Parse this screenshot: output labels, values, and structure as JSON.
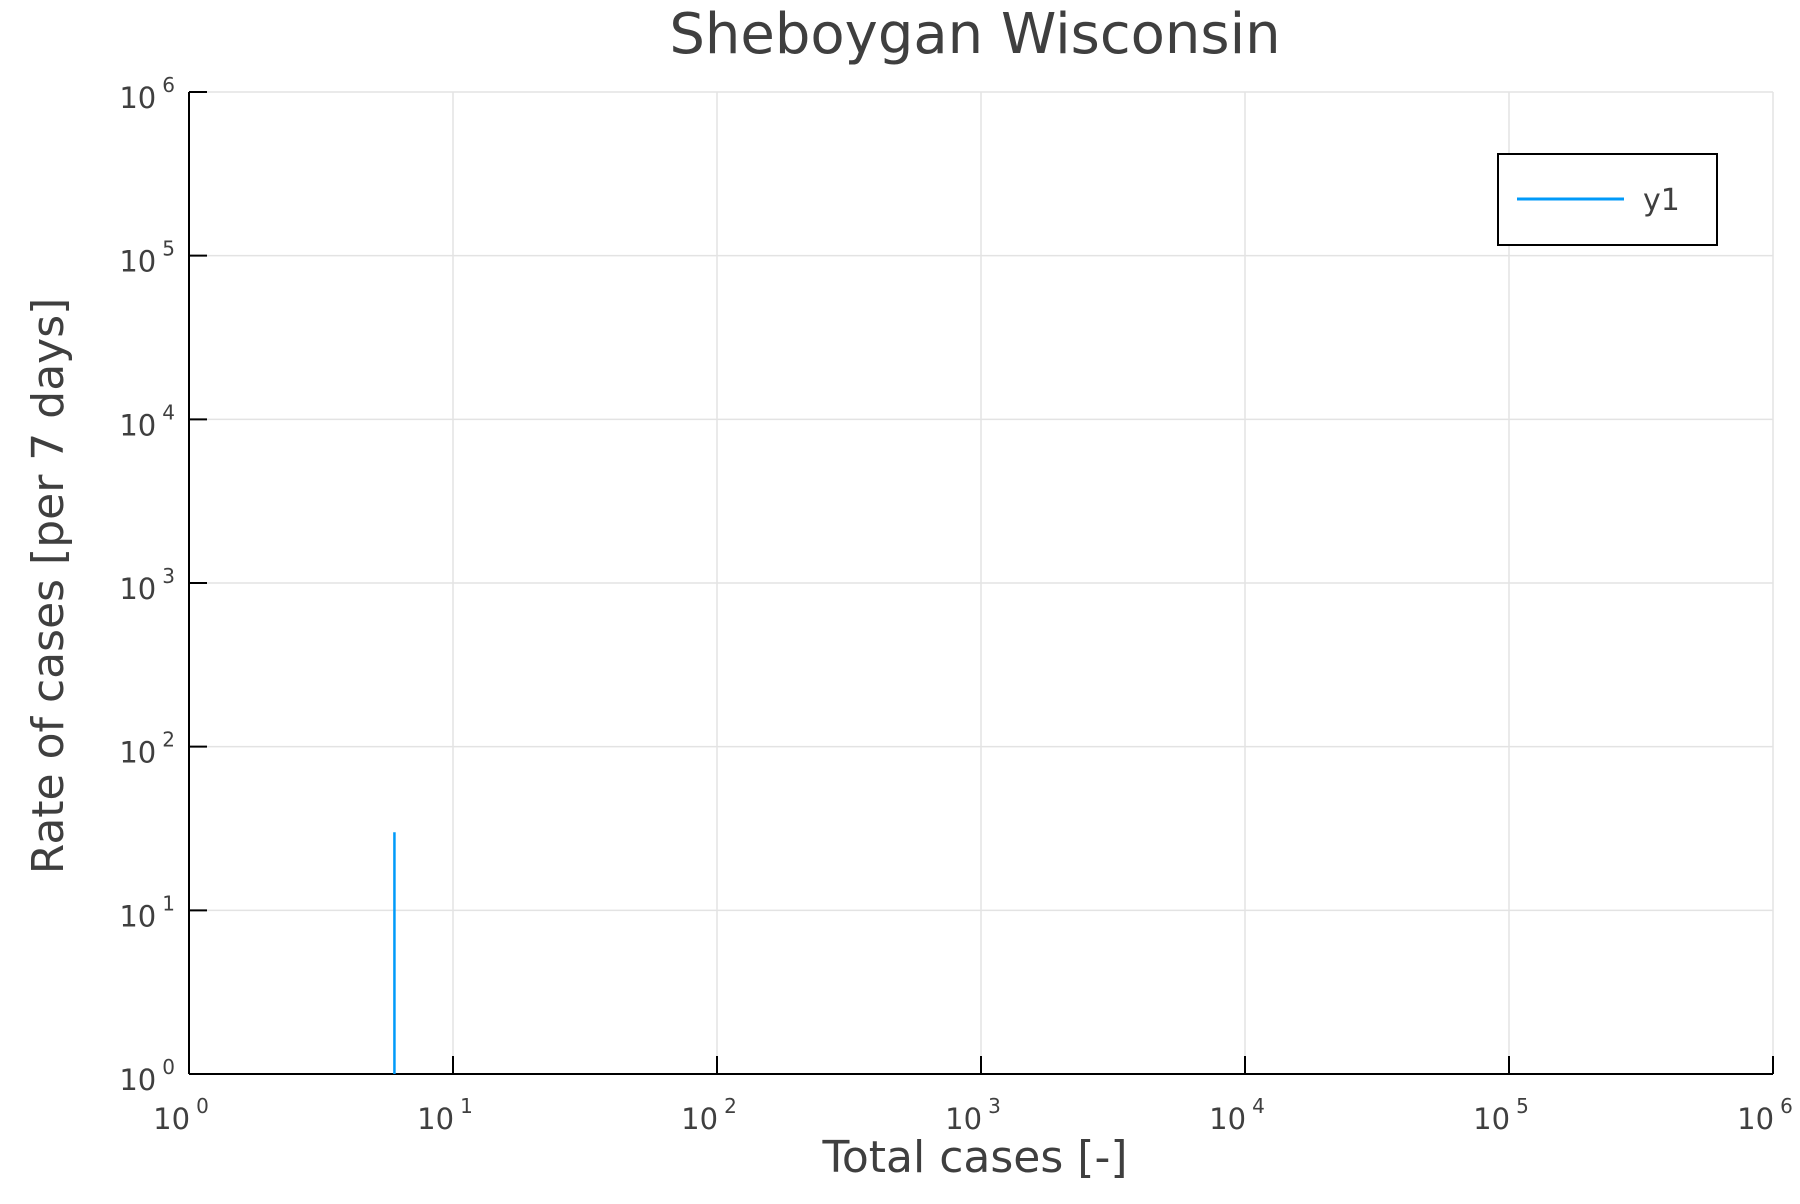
{
  "chart_data": {
    "type": "line",
    "title": "Sheboygan Wisconsin",
    "xlabel": "Total cases [-]",
    "ylabel": "Rate of cases [per 7 days]",
    "xscale": "log",
    "yscale": "log",
    "xlim": [
      1,
      1000000
    ],
    "ylim": [
      1,
      1000000
    ],
    "grid": true,
    "legend_position": "top-right",
    "x_ticks": [
      {
        "value": 1,
        "base": "10",
        "exp": "0"
      },
      {
        "value": 10,
        "base": "10",
        "exp": "1"
      },
      {
        "value": 100,
        "base": "10",
        "exp": "2"
      },
      {
        "value": 1000,
        "base": "10",
        "exp": "3"
      },
      {
        "value": 10000,
        "base": "10",
        "exp": "4"
      },
      {
        "value": 100000,
        "base": "10",
        "exp": "5"
      },
      {
        "value": 1000000,
        "base": "10",
        "exp": "6"
      }
    ],
    "y_ticks": [
      {
        "value": 1,
        "base": "10",
        "exp": "0"
      },
      {
        "value": 10,
        "base": "10",
        "exp": "1"
      },
      {
        "value": 100,
        "base": "10",
        "exp": "2"
      },
      {
        "value": 1000,
        "base": "10",
        "exp": "3"
      },
      {
        "value": 10000,
        "base": "10",
        "exp": "4"
      },
      {
        "value": 100000,
        "base": "10",
        "exp": "5"
      },
      {
        "value": 1000000,
        "base": "10",
        "exp": "6"
      }
    ],
    "series": [
      {
        "name": "y1",
        "color": "#009af9",
        "x": [
          6,
          6
        ],
        "y": [
          1,
          30
        ]
      }
    ]
  }
}
